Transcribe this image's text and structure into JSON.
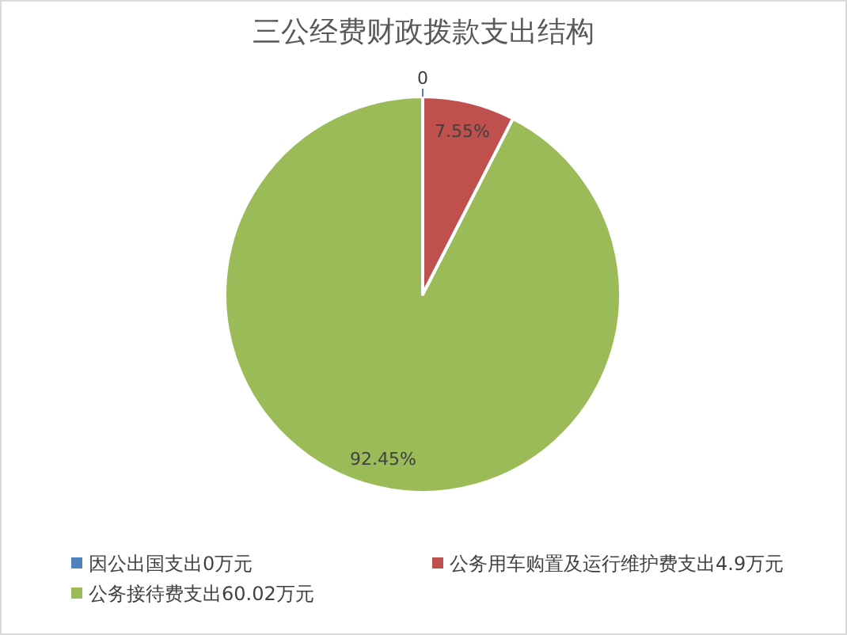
{
  "chart_data": {
    "type": "pie",
    "title": "三公经费财政拨款支出结构",
    "categories": [
      "因公出国支出0万元",
      "公务用车购置及运行维护费支出4.9万元",
      "公务接待费支出60.02万元"
    ],
    "values": [
      0,
      7.55,
      92.45
    ],
    "colors": [
      "#4f81bd",
      "#c0504d",
      "#9bbb59"
    ],
    "value_labels": [
      "0",
      "7.55%",
      "92.45%"
    ],
    "legend": "bottom"
  }
}
